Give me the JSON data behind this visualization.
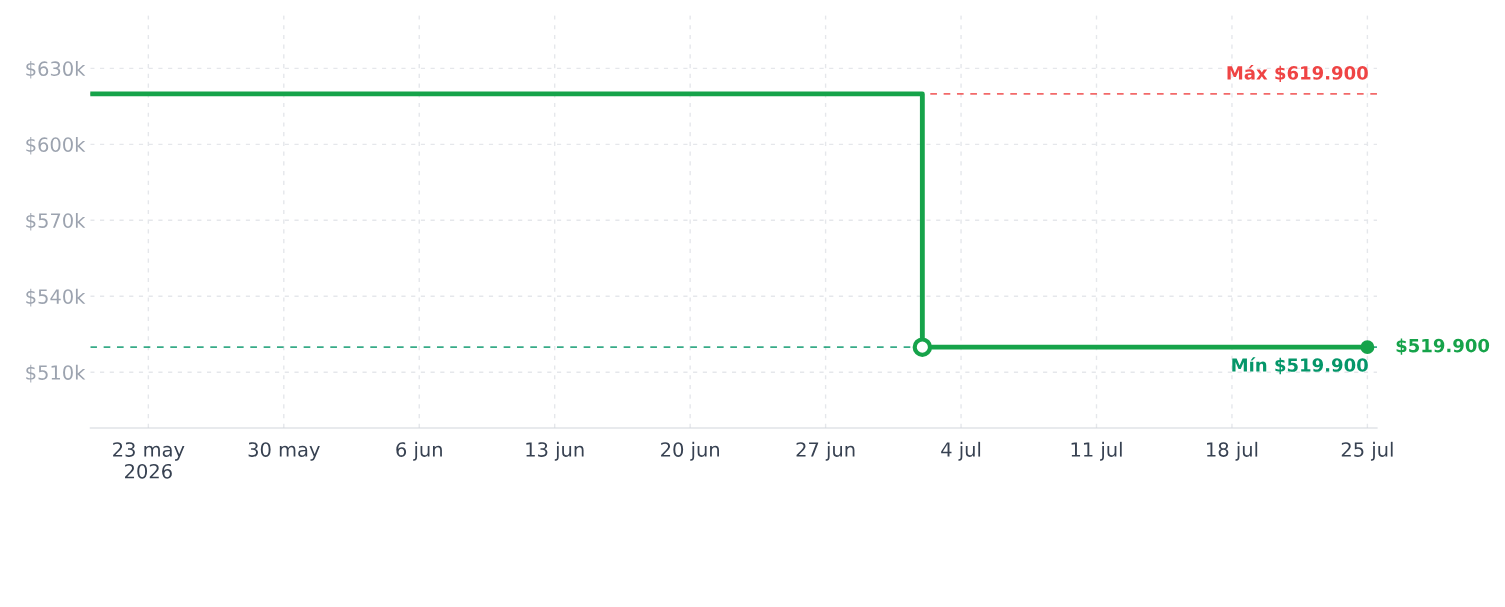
{
  "chart_data": {
    "type": "step",
    "x": [
      "2026-05-20",
      "2026-07-02",
      "2026-07-25"
    ],
    "series": [
      {
        "color": "#16a34a",
        "values": [
          619900,
          519900,
          519900
        ]
      }
    ],
    "marker": "circle",
    "line_style": "solid",
    "grid": true,
    "xlim": [
      "2026-05-20",
      "2026-07-25T12:00"
    ],
    "xticks": [
      {
        "value": "2026-05-23",
        "label": "23 may\n2026"
      },
      {
        "value": "2026-05-30",
        "label": "30 may"
      },
      {
        "value": "2026-06-06",
        "label": "6 jun"
      },
      {
        "value": "2026-06-13",
        "label": "13 jun"
      },
      {
        "value": "2026-06-20",
        "label": "20 jun"
      },
      {
        "value": "2026-06-27",
        "label": "27 jun"
      },
      {
        "value": "2026-07-04",
        "label": "4 jul"
      },
      {
        "value": "2026-07-11",
        "label": "11 jul"
      },
      {
        "value": "2026-07-18",
        "label": "18 jul"
      },
      {
        "value": "2026-07-25",
        "label": "25 jul"
      }
    ],
    "ylim": [
      488000,
      651000
    ],
    "yticks": [
      {
        "value": 510000,
        "label": "$510k"
      },
      {
        "value": 540000,
        "label": "$540k"
      },
      {
        "value": 570000,
        "label": "$570k"
      },
      {
        "value": 600000,
        "label": "$600k"
      },
      {
        "value": 630000,
        "label": "$630k"
      }
    ],
    "ref_lines": [
      {
        "axis": "y",
        "value": 619900,
        "label": "Máx $619.900",
        "color": "#ef4444",
        "line_style": "dashed"
      },
      {
        "axis": "y",
        "value": 519900,
        "label": "Mín $519.900",
        "color": "#059669",
        "line_style": "dashed"
      }
    ],
    "annotations": [
      {
        "text": "$519.900",
        "x": "2026-07-25",
        "y": 519900
      }
    ]
  }
}
